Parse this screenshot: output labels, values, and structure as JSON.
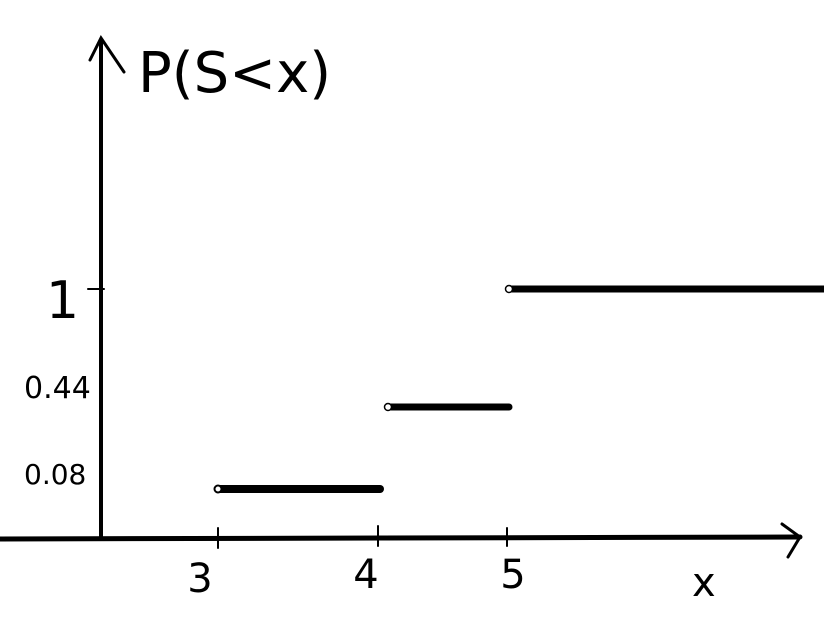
{
  "chart_data": {
    "type": "line",
    "step": true,
    "ylabel": "P(S<x)",
    "xlabel": "x",
    "x_ticks": [
      "3",
      "4",
      "5"
    ],
    "y_ticks": [
      "0.08",
      "0.44",
      "1"
    ],
    "segments": [
      {
        "x_start": 3,
        "x_end": 4,
        "y": 0.08
      },
      {
        "x_start": 4,
        "x_end": 5,
        "y": 0.44
      },
      {
        "x_start": 5,
        "x_end": null,
        "y": 1
      }
    ],
    "open_endpoints": [
      {
        "x": 3,
        "y": 0.08
      },
      {
        "x": 4,
        "y": 0.44
      },
      {
        "x": 5,
        "y": 1
      }
    ],
    "grid": false,
    "legend": "none",
    "colors": {
      "line": "#000000",
      "background": "#ffffff"
    }
  }
}
